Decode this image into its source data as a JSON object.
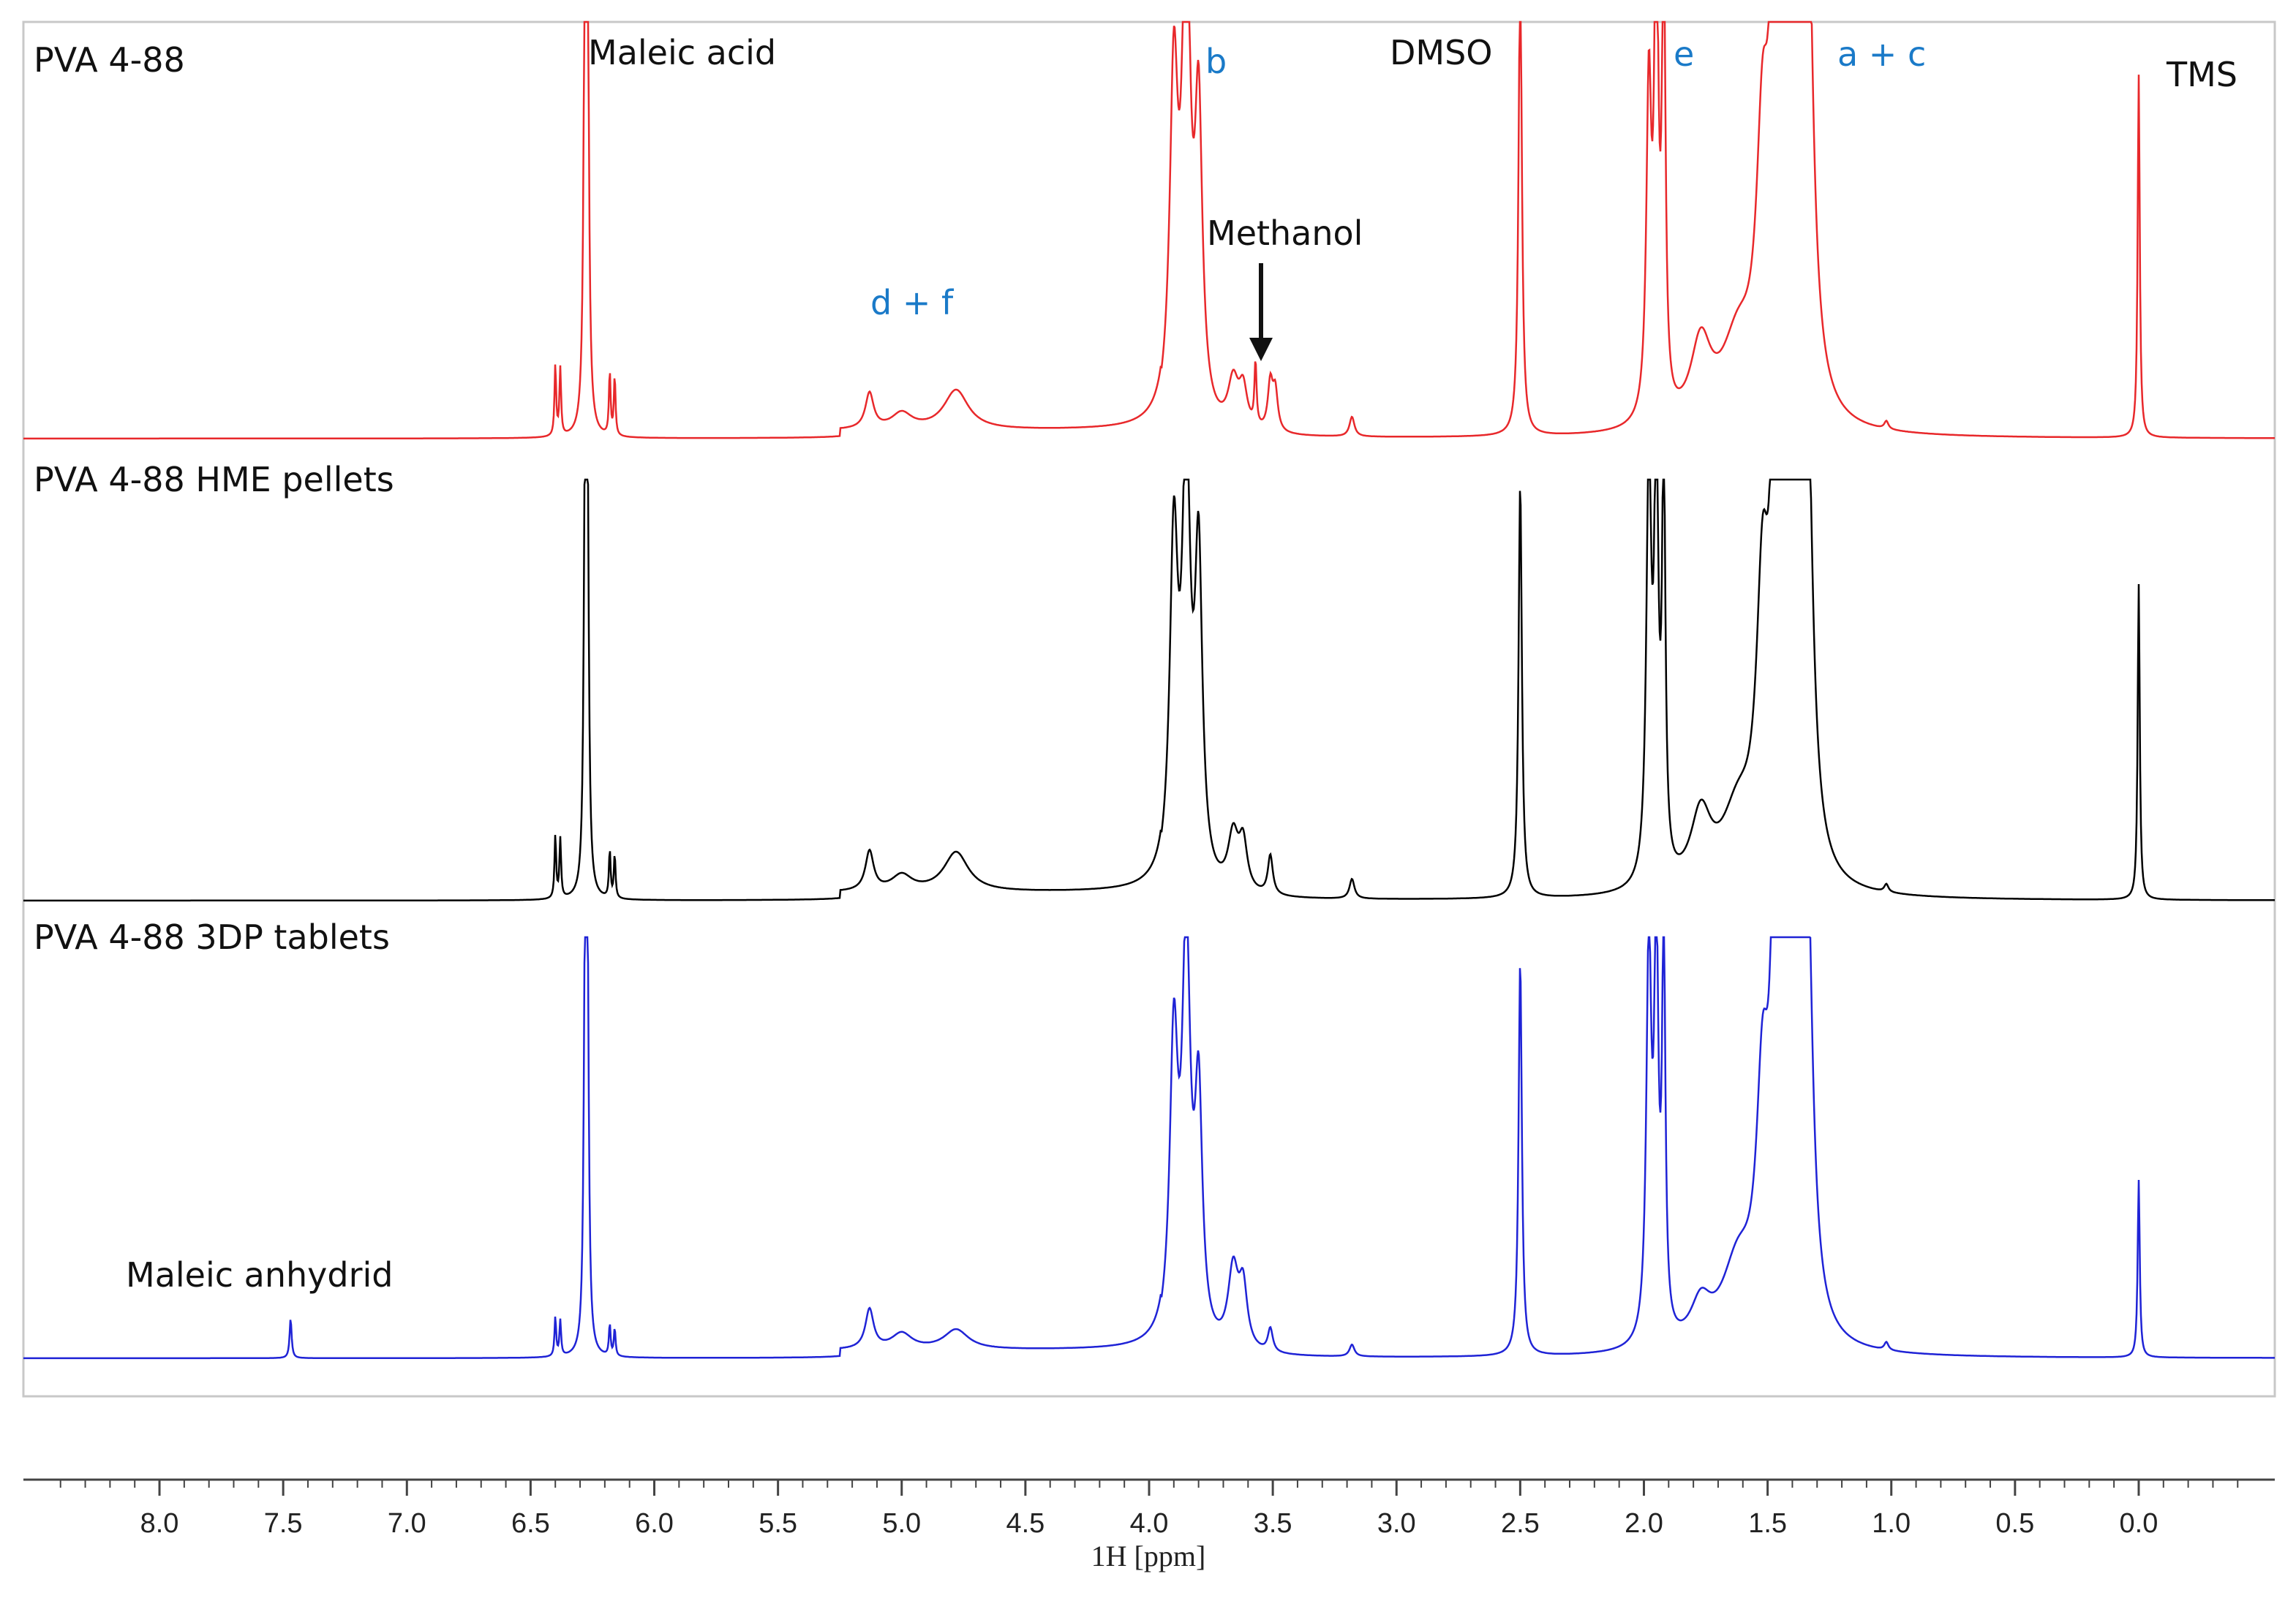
{
  "colors": {
    "series_red": "#e8282b",
    "series_black": "#000000",
    "series_blue": "#1f23d6",
    "annotation_blue": "#1a7ac8",
    "frame": "#c8c8c8"
  },
  "chart_data": {
    "type": "line",
    "chart_kind": "stacked 1H NMR spectra",
    "xlabel": "1H [ppm]",
    "x_reversed": true,
    "xlim": [
      8.55,
      -0.55
    ],
    "xticks": [
      "8.0",
      "7.5",
      "7.0",
      "6.5",
      "6.0",
      "5.5",
      "5.0",
      "4.5",
      "4.0",
      "3.5",
      "3.0",
      "2.5",
      "2.0",
      "1.5",
      "1.0",
      "0.5",
      "0.0"
    ],
    "series": [
      {
        "name": "PVA 4-88",
        "color_key": "series_red",
        "baseline": 0.0,
        "peaks": [
          {
            "ppm": 6.4,
            "height": 0.18,
            "width": 0.004
          },
          {
            "ppm": 6.38,
            "height": 0.17,
            "width": 0.004
          },
          {
            "ppm": 6.28,
            "height": 1.2,
            "width": 0.006
          },
          {
            "ppm": 6.27,
            "height": 1.2,
            "width": 0.006
          },
          {
            "ppm": 6.18,
            "height": 0.16,
            "width": 0.004
          },
          {
            "ppm": 6.16,
            "height": 0.15,
            "width": 0.004
          },
          {
            "ppm": 5.13,
            "height": 0.09,
            "width": 0.02
          },
          {
            "ppm": 5.0,
            "height": 0.04,
            "width": 0.05
          },
          {
            "ppm": 4.78,
            "height": 0.1,
            "width": 0.06
          },
          {
            "ppm": 3.9,
            "height": 0.85,
            "width": 0.02
          },
          {
            "ppm": 3.85,
            "height": 1.2,
            "width": 0.02
          },
          {
            "ppm": 3.8,
            "height": 0.75,
            "width": 0.018
          },
          {
            "ppm": 3.66,
            "height": 0.12,
            "width": 0.025
          },
          {
            "ppm": 3.62,
            "height": 0.1,
            "width": 0.02
          },
          {
            "ppm": 3.57,
            "height": 0.16,
            "width": 0.005
          },
          {
            "ppm": 3.51,
            "height": 0.12,
            "width": 0.012
          },
          {
            "ppm": 3.49,
            "height": 0.1,
            "width": 0.012
          },
          {
            "ppm": 3.18,
            "height": 0.05,
            "width": 0.012
          },
          {
            "ppm": 2.5,
            "height": 1.2,
            "width": 0.008
          },
          {
            "ppm": 1.98,
            "height": 0.82,
            "width": 0.012
          },
          {
            "ppm": 1.95,
            "height": 1.2,
            "width": 0.01
          },
          {
            "ppm": 1.92,
            "height": 1.2,
            "width": 0.008
          },
          {
            "ppm": 1.77,
            "height": 0.2,
            "width": 0.05
          },
          {
            "ppm": 1.62,
            "height": 0.2,
            "width": 0.08
          },
          {
            "ppm": 1.52,
            "height": 0.6,
            "width": 0.03
          },
          {
            "ppm": 1.47,
            "height": 1.2,
            "width": 0.02
          },
          {
            "ppm": 1.43,
            "height": 1.2,
            "width": 0.02
          },
          {
            "ppm": 1.38,
            "height": 1.2,
            "width": 0.025
          },
          {
            "ppm": 1.34,
            "height": 1.2,
            "width": 0.025
          },
          {
            "ppm": 1.02,
            "height": 0.02,
            "width": 0.01
          },
          {
            "ppm": 0.0,
            "height": 0.92,
            "width": 0.005
          }
        ]
      },
      {
        "name": "PVA 4-88 HME pellets",
        "color_key": "series_black",
        "baseline": 0.0,
        "peaks": [
          {
            "ppm": 6.4,
            "height": 0.16,
            "width": 0.004
          },
          {
            "ppm": 6.38,
            "height": 0.15,
            "width": 0.004
          },
          {
            "ppm": 6.28,
            "height": 1.0,
            "width": 0.006
          },
          {
            "ppm": 6.27,
            "height": 1.0,
            "width": 0.006
          },
          {
            "ppm": 6.18,
            "height": 0.12,
            "width": 0.004
          },
          {
            "ppm": 6.16,
            "height": 0.11,
            "width": 0.004
          },
          {
            "ppm": 5.13,
            "height": 0.1,
            "width": 0.02
          },
          {
            "ppm": 5.0,
            "height": 0.04,
            "width": 0.05
          },
          {
            "ppm": 4.78,
            "height": 0.1,
            "width": 0.06
          },
          {
            "ppm": 3.9,
            "height": 0.85,
            "width": 0.02
          },
          {
            "ppm": 3.85,
            "height": 1.05,
            "width": 0.02
          },
          {
            "ppm": 3.8,
            "height": 0.8,
            "width": 0.018
          },
          {
            "ppm": 3.66,
            "height": 0.14,
            "width": 0.025
          },
          {
            "ppm": 3.62,
            "height": 0.12,
            "width": 0.02
          },
          {
            "ppm": 3.51,
            "height": 0.1,
            "width": 0.012
          },
          {
            "ppm": 3.18,
            "height": 0.05,
            "width": 0.012
          },
          {
            "ppm": 2.5,
            "height": 1.05,
            "width": 0.008
          },
          {
            "ppm": 1.98,
            "height": 1.05,
            "width": 0.012
          },
          {
            "ppm": 1.95,
            "height": 1.05,
            "width": 0.01
          },
          {
            "ppm": 1.92,
            "height": 1.05,
            "width": 0.008
          },
          {
            "ppm": 1.77,
            "height": 0.18,
            "width": 0.05
          },
          {
            "ppm": 1.62,
            "height": 0.18,
            "width": 0.08
          },
          {
            "ppm": 1.52,
            "height": 0.65,
            "width": 0.03
          },
          {
            "ppm": 1.47,
            "height": 1.05,
            "width": 0.02
          },
          {
            "ppm": 1.43,
            "height": 1.05,
            "width": 0.02
          },
          {
            "ppm": 1.38,
            "height": 1.05,
            "width": 0.025
          },
          {
            "ppm": 1.34,
            "height": 1.05,
            "width": 0.025
          },
          {
            "ppm": 1.02,
            "height": 0.02,
            "width": 0.01
          },
          {
            "ppm": 0.0,
            "height": 0.8,
            "width": 0.005
          }
        ]
      },
      {
        "name": "PVA 4-88 3DP tablets",
        "color_key": "series_blue",
        "baseline": 0.0,
        "peaks": [
          {
            "ppm": 7.47,
            "height": 0.1,
            "width": 0.005
          },
          {
            "ppm": 6.4,
            "height": 0.1,
            "width": 0.004
          },
          {
            "ppm": 6.38,
            "height": 0.09,
            "width": 0.004
          },
          {
            "ppm": 6.28,
            "height": 0.95,
            "width": 0.006
          },
          {
            "ppm": 6.27,
            "height": 0.95,
            "width": 0.006
          },
          {
            "ppm": 6.18,
            "height": 0.08,
            "width": 0.004
          },
          {
            "ppm": 6.16,
            "height": 0.07,
            "width": 0.004
          },
          {
            "ppm": 5.13,
            "height": 0.1,
            "width": 0.02
          },
          {
            "ppm": 5.0,
            "height": 0.04,
            "width": 0.05
          },
          {
            "ppm": 4.78,
            "height": 0.05,
            "width": 0.06
          },
          {
            "ppm": 3.9,
            "height": 0.75,
            "width": 0.02
          },
          {
            "ppm": 3.85,
            "height": 1.0,
            "width": 0.02
          },
          {
            "ppm": 3.8,
            "height": 0.6,
            "width": 0.018
          },
          {
            "ppm": 3.66,
            "height": 0.2,
            "width": 0.025
          },
          {
            "ppm": 3.62,
            "height": 0.15,
            "width": 0.02
          },
          {
            "ppm": 3.51,
            "height": 0.06,
            "width": 0.012
          },
          {
            "ppm": 3.18,
            "height": 0.03,
            "width": 0.012
          },
          {
            "ppm": 2.5,
            "height": 1.0,
            "width": 0.008
          },
          {
            "ppm": 1.98,
            "height": 1.0,
            "width": 0.012
          },
          {
            "ppm": 1.95,
            "height": 1.0,
            "width": 0.01
          },
          {
            "ppm": 1.92,
            "height": 1.0,
            "width": 0.008
          },
          {
            "ppm": 1.77,
            "height": 0.1,
            "width": 0.05
          },
          {
            "ppm": 1.62,
            "height": 0.2,
            "width": 0.08
          },
          {
            "ppm": 1.52,
            "height": 0.55,
            "width": 0.03
          },
          {
            "ppm": 1.47,
            "height": 1.0,
            "width": 0.02
          },
          {
            "ppm": 1.43,
            "height": 1.0,
            "width": 0.02
          },
          {
            "ppm": 1.38,
            "height": 1.0,
            "width": 0.025
          },
          {
            "ppm": 1.34,
            "height": 1.0,
            "width": 0.025
          },
          {
            "ppm": 1.02,
            "height": 0.02,
            "width": 0.01
          },
          {
            "ppm": 0.0,
            "height": 0.45,
            "width": 0.005
          }
        ]
      }
    ],
    "annotations": [
      {
        "text": "Maleic acid",
        "ppm": 6.28,
        "color_key": "series_black"
      },
      {
        "text": "b",
        "ppm": 3.8,
        "color_key": "annotation_blue"
      },
      {
        "text": "DMSO",
        "ppm": 2.5,
        "color_key": "series_black"
      },
      {
        "text": "e",
        "ppm": 1.92,
        "color_key": "annotation_blue"
      },
      {
        "text": "a + c",
        "ppm": 1.38,
        "color_key": "annotation_blue"
      },
      {
        "text": "TMS",
        "ppm": 0.0,
        "color_key": "series_black"
      },
      {
        "text": "d + f",
        "ppm": 4.95,
        "color_key": "annotation_blue"
      },
      {
        "text": "Methanol",
        "ppm": 3.51,
        "color_key": "series_black",
        "arrow": true
      },
      {
        "text": "Maleic anhydrid",
        "ppm": 7.47,
        "color_key": "series_black"
      }
    ]
  }
}
